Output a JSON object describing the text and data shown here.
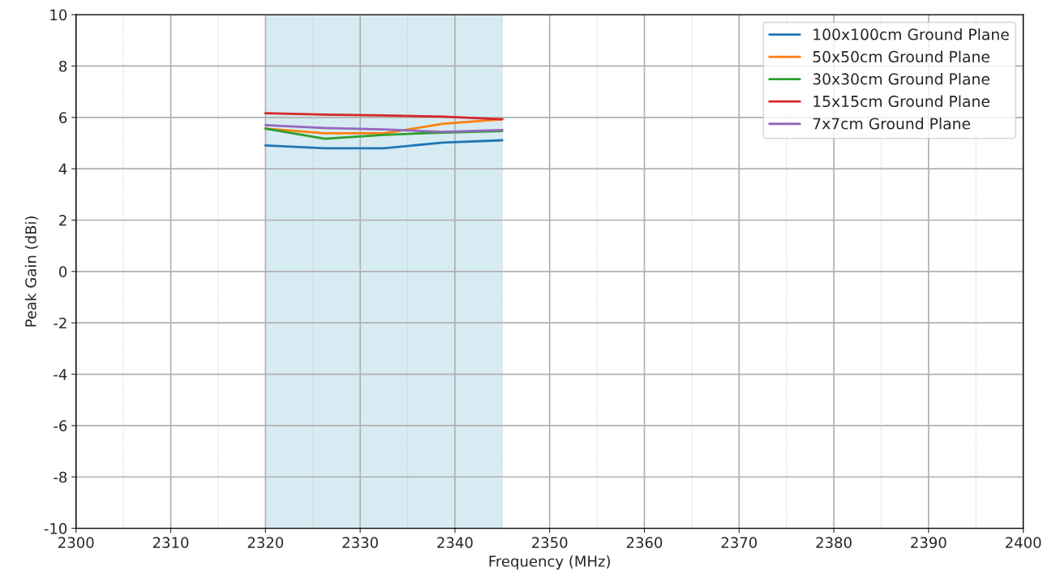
{
  "chart_data": {
    "type": "line",
    "xlabel": "Frequency (MHz)",
    "ylabel": "Peak Gain (dBi)",
    "x": [
      2320,
      2326.25,
      2332.5,
      2338.75,
      2345
    ],
    "series": [
      {
        "name": "100x100cm Ground Plane",
        "color": "#1f77b4",
        "values": [
          4.91,
          4.8,
          4.8,
          5.02,
          5.11
        ]
      },
      {
        "name": "50x50cm Ground Plane",
        "color": "#ff7f0e",
        "values": [
          5.56,
          5.38,
          5.38,
          5.75,
          5.93
        ]
      },
      {
        "name": "30x30cm Ground Plane",
        "color": "#2ca02c",
        "values": [
          5.56,
          5.17,
          5.32,
          5.41,
          5.47
        ]
      },
      {
        "name": "15x15cm Ground Plane",
        "color": "#d62728",
        "values": [
          6.16,
          6.11,
          6.08,
          6.03,
          5.93
        ]
      },
      {
        "name": "7x7cm Ground Plane",
        "color": "#9467bd",
        "values": [
          5.7,
          5.59,
          5.53,
          5.44,
          5.51
        ]
      }
    ],
    "bands": [
      {
        "axis": "x",
        "from": 2320,
        "to": 2345,
        "color": "#add8e6"
      }
    ],
    "xlim": [
      2300,
      2400
    ],
    "xticks": [
      2300,
      2310,
      2320,
      2330,
      2340,
      2350,
      2360,
      2370,
      2380,
      2390,
      2400
    ],
    "ylim": [
      -10,
      10
    ],
    "yticks": [
      -10,
      -8,
      -6,
      -4,
      -2,
      0,
      2,
      4,
      6,
      8,
      10
    ],
    "grid": true,
    "legend": "top right",
    "marker": "none",
    "line_style": "solid"
  }
}
